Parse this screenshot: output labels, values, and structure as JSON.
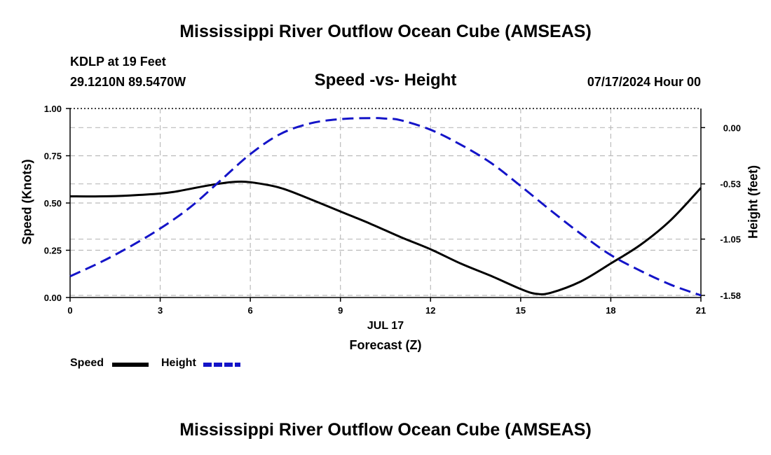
{
  "page": {
    "title_top": "Mississippi River Outflow Ocean Cube (AMSEAS)",
    "title_bottom": "Mississippi River Outflow Ocean Cube (AMSEAS)"
  },
  "header": {
    "station": "KDLP at 19 Feet",
    "coords": "29.1210N  89.5470W",
    "datetime": "07/17/2024 Hour 00"
  },
  "chart_data": {
    "type": "line",
    "title": "Speed -vs- Height",
    "xlabel": "Forecast (Z)",
    "xsublabel": "JUL 17",
    "ylabel": "Speed (Knots)",
    "y2label": "Height (feet)",
    "xlim": [
      0,
      21
    ],
    "ylim": [
      0,
      1
    ],
    "y2lim": [
      -1.6,
      0.18
    ],
    "x_ticks": [
      "0",
      "3",
      "6",
      "9",
      "12",
      "15",
      "18",
      "21"
    ],
    "y_ticks": [
      "0.00",
      "0.25",
      "0.50",
      "0.75",
      "1.00"
    ],
    "y2_ticks": [
      "-1.58",
      "-1.05",
      "-0.53",
      "0.00"
    ],
    "grid": true,
    "series": [
      {
        "name": "Speed",
        "axis": "left",
        "color": "#000000",
        "style": "solid",
        "x": [
          0,
          1,
          2,
          3,
          3.5,
          4,
          4.5,
          5,
          5.5,
          6,
          7,
          8,
          9,
          10,
          11,
          12,
          13,
          14,
          15,
          15.5,
          16,
          17,
          18,
          19,
          20,
          21
        ],
        "values": [
          0.535,
          0.535,
          0.54,
          0.55,
          0.56,
          0.575,
          0.59,
          0.603,
          0.612,
          0.61,
          0.58,
          0.52,
          0.455,
          0.39,
          0.32,
          0.255,
          0.18,
          0.115,
          0.045,
          0.02,
          0.025,
          0.085,
          0.18,
          0.28,
          0.41,
          0.58
        ]
      },
      {
        "name": "Height",
        "axis": "right",
        "color": "#1414c8",
        "style": "dashed",
        "x": [
          0,
          1,
          2,
          3,
          4,
          5,
          6,
          7,
          8,
          9,
          10,
          10.5,
          11,
          12,
          13,
          14,
          15,
          16,
          17,
          18,
          19,
          20,
          21
        ],
        "values": [
          -1.4,
          -1.27,
          -1.12,
          -0.95,
          -0.75,
          -0.5,
          -0.25,
          -0.06,
          0.04,
          0.08,
          0.09,
          0.085,
          0.07,
          -0.02,
          -0.16,
          -0.33,
          -0.55,
          -0.78,
          -1.0,
          -1.2,
          -1.35,
          -1.48,
          -1.58
        ]
      }
    ],
    "legend": [
      {
        "label": "Speed",
        "color": "#000000",
        "style": "solid"
      },
      {
        "label": "Height",
        "color": "#1414c8",
        "style": "dashed"
      }
    ]
  }
}
